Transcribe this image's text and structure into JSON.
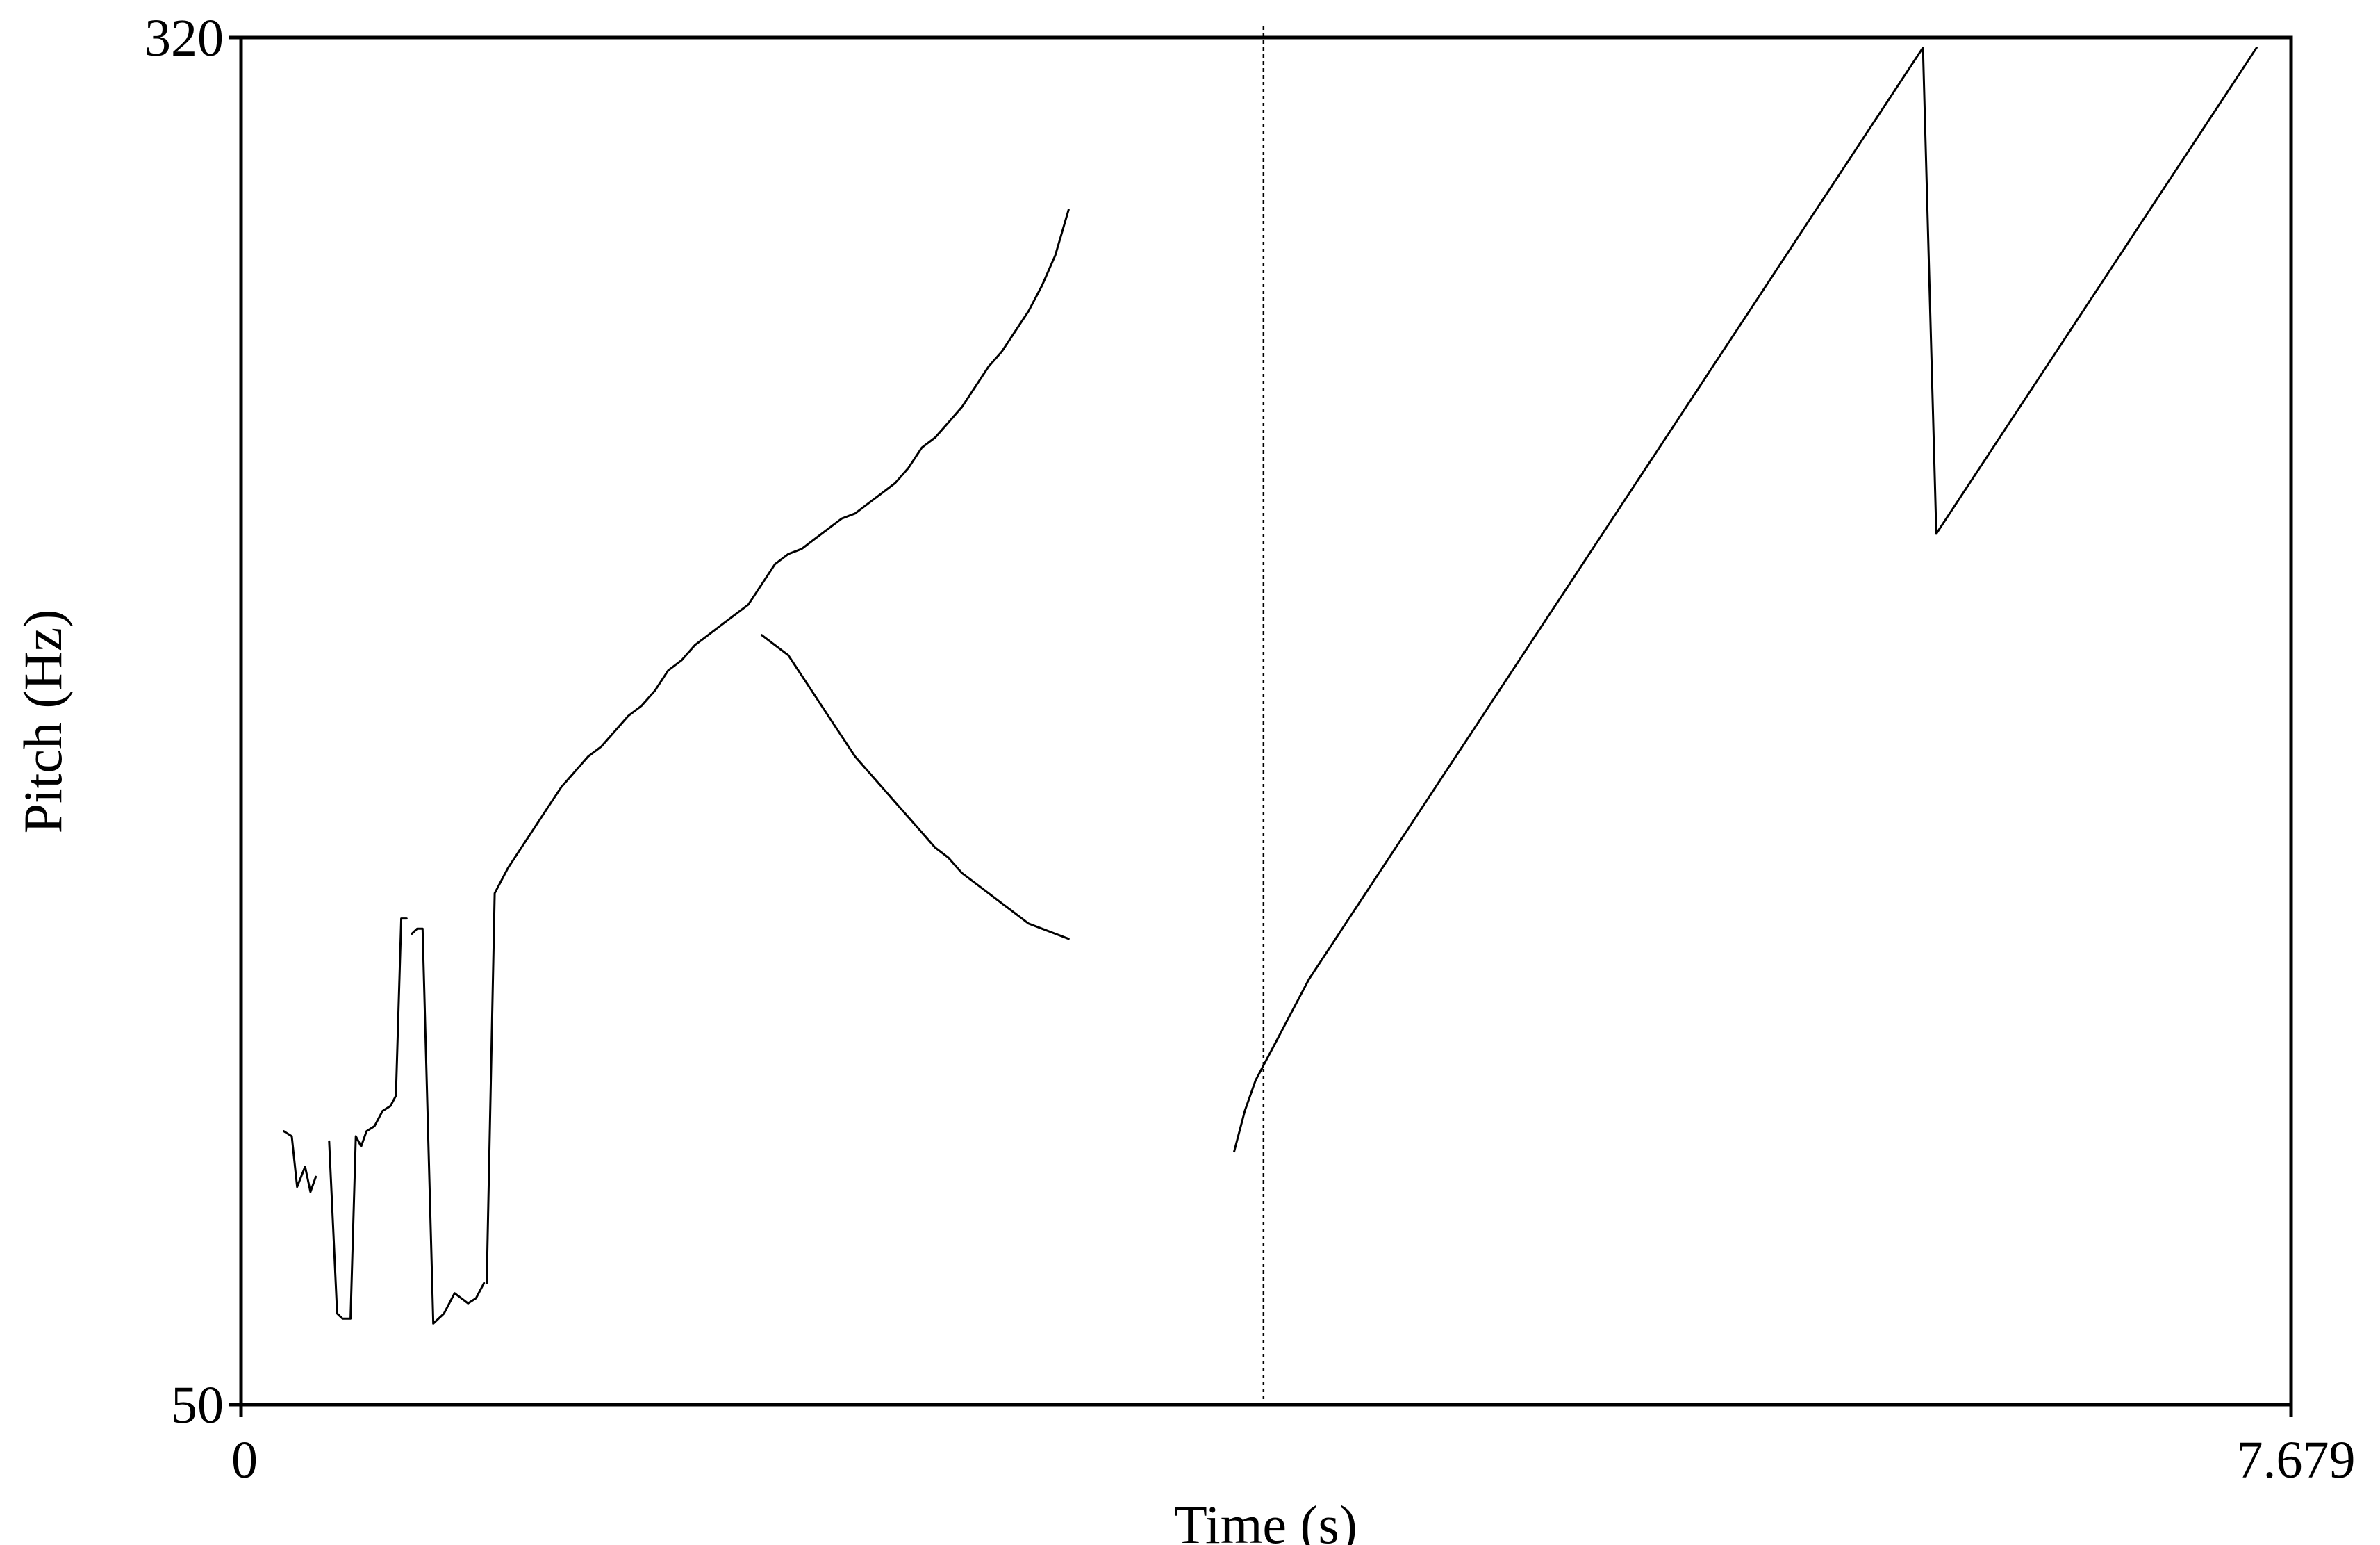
{
  "chart_data": {
    "type": "line",
    "title": "",
    "xlabel": "Time (s)",
    "ylabel": "Pitch (Hz)",
    "xlim": [
      0,
      7.679
    ],
    "ylim": [
      50,
      320
    ],
    "x_tick_labels": [
      "0",
      "7.679"
    ],
    "y_tick_labels": [
      "320",
      "50"
    ],
    "cursor_time": 3.83,
    "cursor_label": "",
    "grid": false,
    "line_color": "#000000",
    "series": [
      {
        "x": [
          0.16,
          0.19,
          0.21,
          0.24,
          0.26,
          0.28
        ],
        "y": [
          104,
          103,
          93,
          97,
          92,
          95
        ]
      },
      {
        "x": [
          0.33,
          0.36,
          0.38,
          0.41,
          0.43,
          0.45,
          0.47,
          0.5,
          0.53,
          0.56,
          0.58,
          0.6,
          0.62
        ],
        "y": [
          102,
          68,
          67,
          67,
          103,
          101,
          104,
          105,
          108,
          109,
          111,
          146,
          146
        ]
      },
      {
        "x": [
          0.64,
          0.66,
          0.68,
          0.72,
          0.76,
          0.8,
          0.85,
          0.88,
          0.91
        ],
        "y": [
          143,
          144,
          144,
          66,
          68,
          72,
          70,
          71,
          74
        ]
      },
      {
        "x": [
          0.92,
          0.95,
          1.0,
          1.05,
          1.1,
          1.15,
          1.2,
          1.25,
          1.3,
          1.35,
          1.4,
          1.45,
          1.5,
          1.55,
          1.6,
          1.65,
          1.7,
          1.75,
          1.8,
          1.85,
          1.9,
          1.95,
          2.0,
          2.05,
          2.1,
          2.15,
          2.2,
          2.25,
          2.3,
          2.35,
          2.4,
          2.45,
          2.5,
          2.55,
          2.6,
          2.65,
          2.7,
          2.75,
          2.8,
          2.85,
          2.9,
          2.95,
          3.0,
          3.05,
          3.1
        ],
        "y": [
          74,
          151,
          156,
          160,
          164,
          168,
          172,
          175,
          178,
          180,
          183,
          186,
          188,
          191,
          195,
          197,
          200,
          202,
          204,
          206,
          208,
          212,
          216,
          218,
          219,
          221,
          223,
          225,
          226,
          228,
          230,
          232,
          235,
          239,
          241,
          244,
          247,
          251,
          255,
          258,
          262,
          266,
          271,
          277,
          286
        ]
      },
      {
        "x": [
          1.95,
          2.05,
          2.1,
          2.15,
          2.2,
          2.25,
          2.3,
          2.35,
          2.4,
          2.45,
          2.5,
          2.55,
          2.6,
          2.65,
          2.7,
          2.75,
          2.8,
          2.85,
          2.9,
          2.95,
          3.0,
          3.05,
          3.1
        ],
        "y": [
          202,
          198,
          194,
          190,
          186,
          182,
          178,
          175,
          172,
          169,
          166,
          163,
          160,
          158,
          155,
          153,
          151,
          149,
          147,
          145,
          144,
          143,
          142
        ]
      },
      {
        "x": [
          3.72,
          3.76,
          3.8,
          3.84,
          3.88,
          3.92,
          3.96,
          4.0,
          4.05,
          4.1,
          4.15,
          4.2,
          4.25,
          4.3,
          4.35,
          4.4,
          4.45,
          4.5,
          4.55,
          4.6,
          4.65,
          4.7,
          4.75,
          4.8,
          4.85,
          4.9,
          4.95,
          5.0,
          5.05,
          5.1,
          5.15,
          5.2,
          5.25,
          5.3,
          5.35,
          5.4,
          5.45,
          5.5,
          5.55,
          5.6,
          5.65,
          5.7,
          5.75,
          5.8,
          5.85,
          5.9,
          5.95,
          6.0,
          6.05,
          6.1,
          6.15,
          6.2,
          6.25,
          6.3,
          6.35,
          6.4,
          6.45,
          6.5,
          6.55,
          6.6,
          6.65,
          6.7,
          6.75,
          6.8,
          6.85,
          6.9,
          6.95,
          7.0,
          7.05,
          7.1,
          7.15,
          7.2,
          7.25,
          7.3,
          7.35,
          7.4,
          7.45,
          7.5,
          7.55
        ],
        "y": [
          100,
          108,
          114,
          118,
          122,
          126,
          130,
          134,
          138,
          142,
          146,
          150,
          154,
          158,
          162,
          166,
          170,
          174,
          178,
          182,
          186,
          190,
          194,
          198,
          202,
          206,
          210,
          214,
          218,
          222,
          226,
          230,
          234,
          238,
          242,
          246,
          250,
          254,
          258,
          262,
          266,
          270,
          274,
          278,
          282,
          286,
          290,
          294,
          298,
          302,
          306,
          310,
          314,
          318,
          222,
          226,
          230,
          234,
          238,
          242,
          246,
          250,
          254,
          258,
          262,
          266,
          270,
          274,
          278,
          282,
          286,
          290,
          294,
          298,
          302,
          306,
          310,
          314,
          318
        ]
      }
    ]
  }
}
